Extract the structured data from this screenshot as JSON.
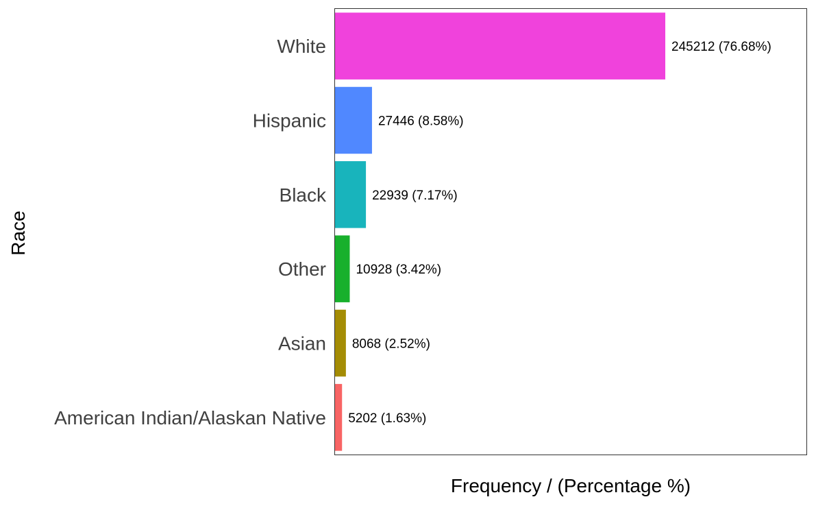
{
  "chart_data": {
    "type": "bar",
    "orientation": "horizontal",
    "title": "",
    "xlabel": "Frequency / (Percentage %)",
    "ylabel": "Race",
    "xlim": [
      0,
      350000
    ],
    "grid": false,
    "legend": "none",
    "categories": [
      "White",
      "Hispanic",
      "Black",
      "Other",
      "Asian",
      "American Indian/Alaskan Native"
    ],
    "values": [
      245212,
      27446,
      22939,
      10928,
      8068,
      5202
    ],
    "percentages": [
      76.68,
      8.58,
      7.17,
      3.42,
      2.52,
      1.63
    ],
    "data_labels": [
      "245212 (76.68%)",
      "27446 (8.58%)",
      "22939 (7.17%)",
      "10928 (3.42%)",
      "8068 (2.52%)",
      "5202 (1.63%)"
    ],
    "colors": [
      "#F042DC",
      "#5088FF",
      "#18B4BC",
      "#18B02C",
      "#A48C04",
      "#F86464"
    ]
  }
}
